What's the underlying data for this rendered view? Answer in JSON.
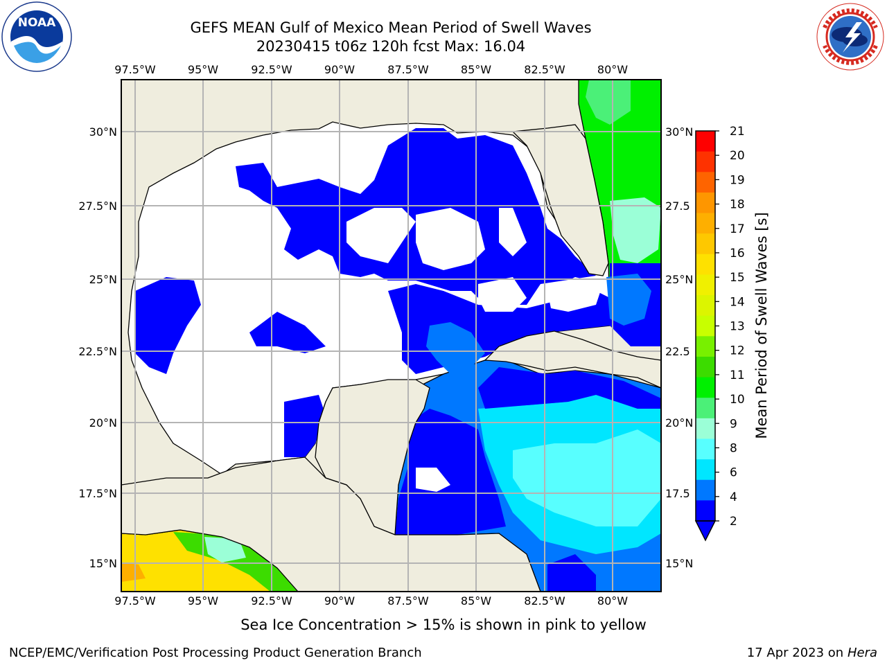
{
  "header": {
    "title_line1": "GEFS MEAN Gulf of Mexico Mean Period of Swell Waves",
    "title_line2": "20230415 t06z 120h fcst   Max: 16.04"
  },
  "logos": {
    "left": {
      "name": "NOAA",
      "text": "NOAA"
    },
    "right": {
      "name": "National Weather Service"
    }
  },
  "map": {
    "lon_labels": [
      "97.5°W",
      "95°W",
      "92.5°W",
      "90°W",
      "87.5°W",
      "85°W",
      "82.5°W",
      "80°W"
    ],
    "lat_labels_left": [
      "30°N",
      "27.5°N",
      "25°N",
      "22.5°N",
      "20°N",
      "17.5°N",
      "15°N"
    ],
    "lat_labels_right": [
      "30°N",
      "27.5",
      "25°N",
      "22.5",
      "20°N",
      "17.5",
      "15°N"
    ],
    "lon_range": [
      -98,
      -78.2
    ],
    "lat_range": [
      14,
      31.8
    ],
    "colors": {
      "land": "#efedde",
      "water_missing": "#ffffff",
      "grid": "#b4b4b4"
    }
  },
  "colorbar": {
    "label": "Mean Period of Swell Waves [s]",
    "ticks": [
      "21",
      "20",
      "19",
      "18",
      "17",
      "16",
      "15",
      "14",
      "13",
      "12",
      "11",
      "10",
      "9",
      "8",
      "6",
      "4",
      "2"
    ],
    "colors": [
      "#fe0000",
      "#fe3200",
      "#fe6400",
      "#fe9600",
      "#feaf00",
      "#fec800",
      "#fee100",
      "#f0f000",
      "#dcf500",
      "#c8ff00",
      "#78f000",
      "#3cdc00",
      "#00f000",
      "#4bf078",
      "#9bffd7",
      "#58ffff",
      "#00e6ff",
      "#0078ff",
      "#0000ff"
    ],
    "extend_color": "#0000ff"
  },
  "note": "Sea Ice Concentration > 15% is shown in pink to yellow",
  "footer": {
    "left": "NCEP/EMC/Verification Post Processing Product Generation Branch",
    "right_date": "17 Apr 2023 on ",
    "right_host": "Hera"
  }
}
